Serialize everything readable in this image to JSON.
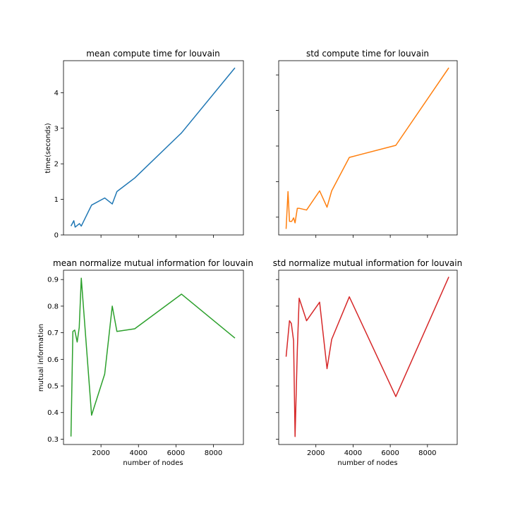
{
  "chart_data": [
    {
      "type": "line",
      "title": "mean compute time for louvain",
      "xlabel": "",
      "ylabel": "time(seconds)",
      "xlim": [
        0,
        9600
      ],
      "ylim": [
        0,
        4.9
      ],
      "xticks": [
        2000,
        4000,
        6000,
        8000
      ],
      "yticks": [
        0,
        1,
        2,
        3,
        4
      ],
      "show_xtick_labels": false,
      "show_ytick_labels": true,
      "color": "#1f77b4",
      "x": [
        400,
        550,
        620,
        850,
        950,
        1500,
        2200,
        2600,
        2850,
        3800,
        6300,
        9150
      ],
      "y": [
        0.25,
        0.4,
        0.22,
        0.32,
        0.25,
        0.84,
        1.04,
        0.87,
        1.22,
        1.6,
        2.87,
        4.7
      ]
    },
    {
      "type": "line",
      "title": "std compute time for louvain",
      "xlabel": "",
      "ylabel": "",
      "xlim": [
        0,
        9600
      ],
      "ylim": [
        0,
        4.9
      ],
      "xticks": [
        2000,
        4000,
        6000,
        8000
      ],
      "yticks": [
        0.5,
        1.5,
        2.5,
        3.5,
        4.5
      ],
      "show_xtick_labels": false,
      "show_ytick_labels": false,
      "color": "#ff7f0e",
      "x": [
        400,
        500,
        580,
        700,
        800,
        880,
        1000,
        1100,
        1500,
        2200,
        2600,
        2850,
        3800,
        6300,
        9150
      ],
      "y": [
        0.17,
        1.22,
        0.38,
        0.38,
        0.48,
        0.34,
        0.75,
        0.75,
        0.7,
        1.24,
        0.78,
        1.24,
        2.18,
        2.52,
        4.7
      ]
    },
    {
      "type": "line",
      "title": "mean normalize mutual information for louvain",
      "xlabel": "number of nodes",
      "ylabel": "mutual information",
      "xlim": [
        0,
        9600
      ],
      "ylim": [
        0.28,
        0.935
      ],
      "xticks": [
        2000,
        4000,
        6000,
        8000
      ],
      "yticks": [
        0.3,
        0.4,
        0.5,
        0.6,
        0.7,
        0.8,
        0.9
      ],
      "show_xtick_labels": true,
      "show_ytick_labels": true,
      "color": "#2ca02c",
      "x": [
        400,
        500,
        600,
        730,
        840,
        950,
        1500,
        2200,
        2600,
        2850,
        3800,
        6300,
        9150
      ],
      "y": [
        0.31,
        0.705,
        0.71,
        0.665,
        0.72,
        0.905,
        0.39,
        0.545,
        0.8,
        0.705,
        0.715,
        0.845,
        0.68
      ]
    },
    {
      "type": "line",
      "title": "std normalize mutual information for louvain",
      "xlabel": "number of nodes",
      "ylabel": "",
      "xlim": [
        0,
        9600
      ],
      "ylim": [
        0.28,
        0.935
      ],
      "xticks": [
        2000,
        4000,
        6000,
        8000
      ],
      "yticks": [
        0.3,
        0.4,
        0.5,
        0.6,
        0.7,
        0.8,
        0.9
      ],
      "show_xtick_labels": true,
      "show_ytick_labels": false,
      "color": "#d62728",
      "x": [
        400,
        580,
        680,
        800,
        880,
        1000,
        1100,
        1500,
        2200,
        2600,
        2850,
        3800,
        6300,
        9150
      ],
      "y": [
        0.61,
        0.745,
        0.735,
        0.67,
        0.31,
        0.635,
        0.83,
        0.745,
        0.815,
        0.565,
        0.675,
        0.835,
        0.46,
        0.91
      ]
    }
  ]
}
